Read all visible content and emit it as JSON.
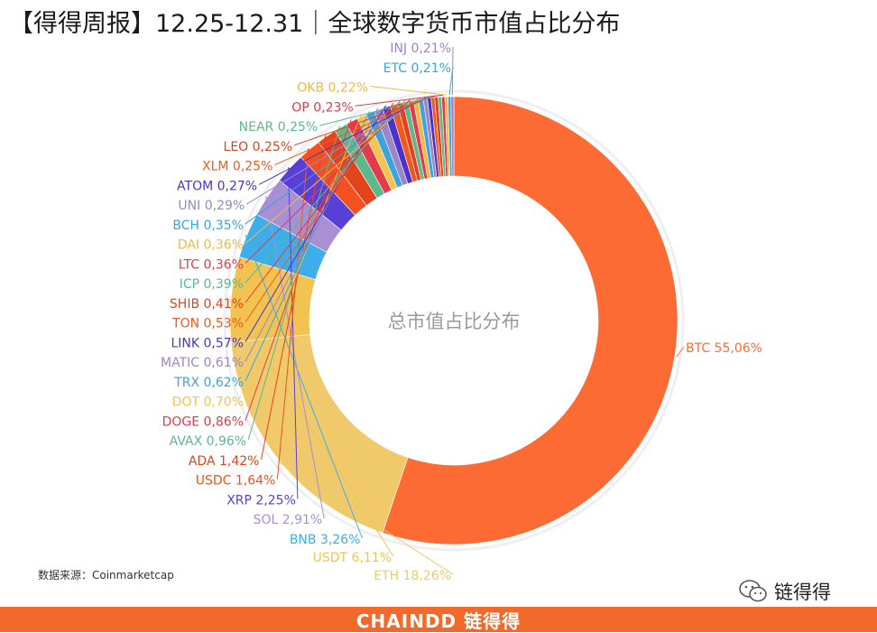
{
  "header": {
    "title": "【得得周报】12.25-12.31｜全球数字货币市值占比分布"
  },
  "chart_data": {
    "type": "pie",
    "subtype": "donut",
    "center_label": "总市值占比分布",
    "legend": "none",
    "slices": [
      {
        "label": "BTC",
        "value": 55.06,
        "text": "BTC 55,06%",
        "color": "#fd6b35"
      },
      {
        "label": "ETH",
        "value": 18.26,
        "text": "ETH 18,26%",
        "color": "#f0c96a"
      },
      {
        "label": "USDT",
        "value": 6.11,
        "text": "USDT 6,11%",
        "color": "#f2c350"
      },
      {
        "label": "BNB",
        "value": 3.26,
        "text": "BNB 3,26%",
        "color": "#3daee9"
      },
      {
        "label": "SOL",
        "value": 2.91,
        "text": "SOL 2,91%",
        "color": "#a98fd4"
      },
      {
        "label": "XRP",
        "value": 2.25,
        "text": "XRP 2,25%",
        "color": "#5a3fd6"
      },
      {
        "label": "USDC",
        "value": 1.64,
        "text": "USDC 1,64%",
        "color": "#f4511e"
      },
      {
        "label": "ADA",
        "value": 1.42,
        "text": "ADA 1,42%",
        "color": "#e4431c"
      },
      {
        "label": "AVAX",
        "value": 0.96,
        "text": "AVAX 0,96%",
        "color": "#5cb98c"
      },
      {
        "label": "DOGE",
        "value": 0.86,
        "text": "DOGE 0,86%",
        "color": "#e23b4c"
      },
      {
        "label": "DOT",
        "value": 0.7,
        "text": "DOT 0,70%",
        "color": "#f3c44e"
      },
      {
        "label": "TRX",
        "value": 0.62,
        "text": "TRX 0,62%",
        "color": "#3aa3e0"
      },
      {
        "label": "MATIC",
        "value": 0.61,
        "text": "MATIC 0,61%",
        "color": "#9b86c8"
      },
      {
        "label": "LINK",
        "value": 0.57,
        "text": "LINK 0,57%",
        "color": "#4b33c9"
      },
      {
        "label": "TON",
        "value": 0.53,
        "text": "TON 0,53%",
        "color": "#f25a1d"
      },
      {
        "label": "SHIB",
        "value": 0.41,
        "text": "SHIB 0,41%",
        "color": "#e44020"
      },
      {
        "label": "ICP",
        "value": 0.39,
        "text": "ICP 0,39%",
        "color": "#5cb98c"
      },
      {
        "label": "LTC",
        "value": 0.36,
        "text": "LTC 0,36%",
        "color": "#e23b4c"
      },
      {
        "label": "DAI",
        "value": 0.36,
        "text": "DAI 0,36%",
        "color": "#f2b945"
      },
      {
        "label": "BCH",
        "value": 0.35,
        "text": "BCH 0,35%",
        "color": "#3aa3e0"
      },
      {
        "label": "UNI",
        "value": 0.29,
        "text": "UNI 0,29%",
        "color": "#9b86c8"
      },
      {
        "label": "ATOM",
        "value": 0.27,
        "text": "ATOM 0,27%",
        "color": "#4b33c9"
      },
      {
        "label": "XLM",
        "value": 0.25,
        "text": "XLM 0,25%",
        "color": "#f25a1d"
      },
      {
        "label": "LEO",
        "value": 0.25,
        "text": "LEO 0,25%",
        "color": "#e44020"
      },
      {
        "label": "NEAR",
        "value": 0.25,
        "text": "NEAR 0,25%",
        "color": "#5cb98c"
      },
      {
        "label": "OP",
        "value": 0.23,
        "text": "OP 0,23%",
        "color": "#e23b4c"
      },
      {
        "label": "OKB",
        "value": 0.22,
        "text": "OKB 0,22%",
        "color": "#f2b945"
      },
      {
        "label": "ETC",
        "value": 0.21,
        "text": "ETC 0,21%",
        "color": "#3aa3e0"
      },
      {
        "label": "INJ",
        "value": 0.21,
        "text": "INJ 0,21%",
        "color": "#9b86c8"
      }
    ]
  },
  "source": "数据来源：Coinmarketcap",
  "wechat": {
    "account": "链得得",
    "icon": "wechat-icon"
  },
  "footer": {
    "brand": "CHAINDD 链得得",
    "color": "#f26a2b"
  }
}
